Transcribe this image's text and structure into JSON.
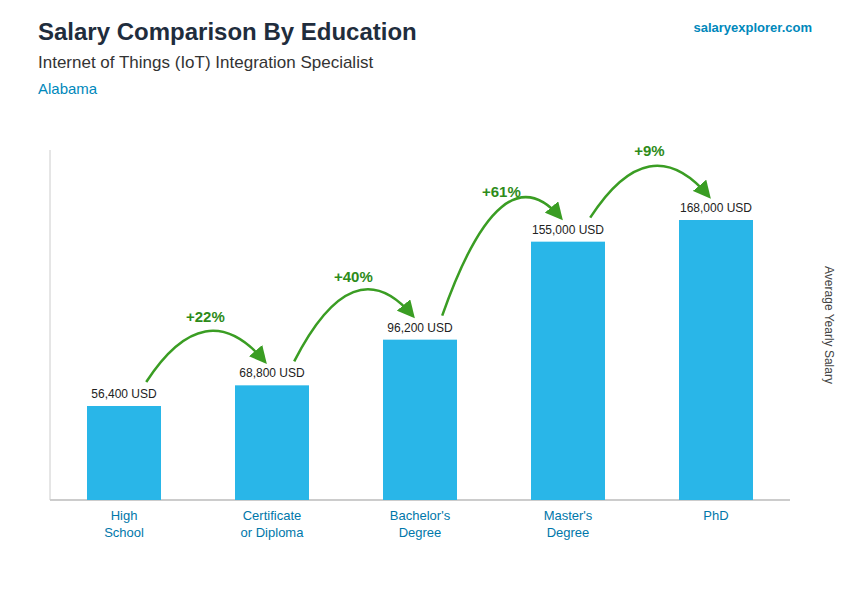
{
  "chart_data": {
    "type": "bar",
    "title": "Salary Comparison By Education",
    "subtitle": [
      "Internet of Things (IoT) Integration Specialist",
      "Alabama"
    ],
    "source": "salaryexplorer.com",
    "ylabel": "Average Yearly Salary",
    "categories": [
      "High\nSchool",
      "Certificate\nor Diploma",
      "Bachelor's\nDegree",
      "Master's\nDegree",
      "PhD"
    ],
    "values": [
      56400,
      68800,
      96200,
      155000,
      168000
    ],
    "value_labels": [
      "56,400 USD",
      "68,800 USD",
      "96,200 USD",
      "155,000 USD",
      "168,000 USD"
    ],
    "annotations": [
      "+22%",
      "+40%",
      "+61%",
      "+9%"
    ],
    "color": "#29b6e8",
    "ylim": [
      0,
      210000
    ],
    "data_labels": true,
    "tick_labels": "x",
    "grid": false
  }
}
